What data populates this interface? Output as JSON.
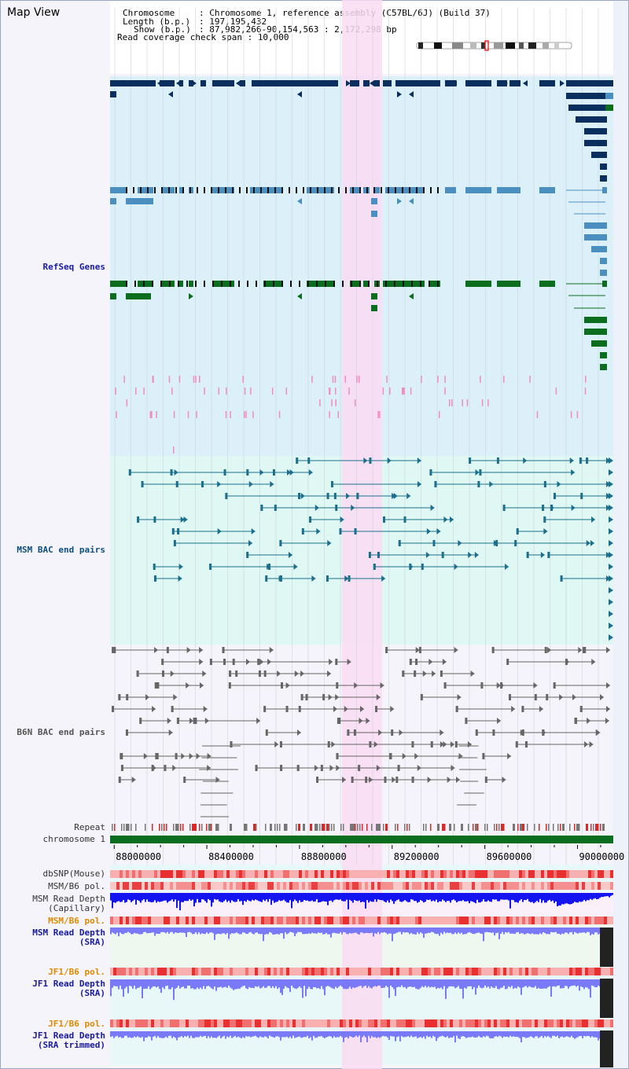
{
  "app": {
    "title": "Map View"
  },
  "header": {
    "chromosome_label": "Chromosome",
    "chromosome_value": ": Chromosome 1, reference assembly (C57BL/6J) (Build 37)",
    "length_label": "Length (b.p.)",
    "length_value": ": 197,195,432",
    "show_label": "Show (b.p.)",
    "show_value": ": 87,982,266-90,154,563 : 2,172,298 bp",
    "coverage_line": "Read coverage check span : 10,000"
  },
  "tracks": {
    "refseq": "RefSeq Genes",
    "msm_bac": "MSM BAC end pairs",
    "b6n_bac": "B6N BAC end pairs",
    "repeat": "Repeat",
    "chromosome": "chromosome 1",
    "dbsnp": "dbSNP(Mouse)",
    "msm_b6_pol": "MSM/B6 pol.",
    "msm_depth_cap_1": "MSM Read Depth",
    "msm_depth_cap_2": "(Capillary)",
    "msm_b6_pol_2": "MSM/B6 pol.",
    "msm_depth_sra_1": "MSM Read Depth",
    "msm_depth_sra_2": "(SRA)",
    "jf1_b6_pol": "JF1/B6 pol.",
    "jf1_depth_sra_1": "JF1 Read Depth",
    "jf1_depth_sra_2": "(SRA)",
    "jf1_b6_pol_2": "JF1/B6 pol.",
    "jf1_depth_trim_1": "JF1 Read Depth",
    "jf1_depth_trim_2": "(SRA trimmed)"
  },
  "axis": {
    "ticks": [
      "88000000",
      "88400000",
      "88800000",
      "89200000",
      "89600000",
      "90000000"
    ],
    "tick_values": [
      88000000,
      88400000,
      88800000,
      89200000,
      89600000,
      90000000
    ],
    "range": [
      87982266,
      90154563
    ]
  },
  "colors": {
    "refseq_bg": "#dcf0fa",
    "bac_bg": "#e0f8f4",
    "highlight": "#fadcf2",
    "gene_dark": "#0a2f5e",
    "gene_mid": "#4a8fbf",
    "gene_green": "#0a6e1e",
    "chromosome_bar": "#0a6e1e",
    "depth_blue": "#1414f0",
    "depth_light": "#7a7af8"
  }
}
